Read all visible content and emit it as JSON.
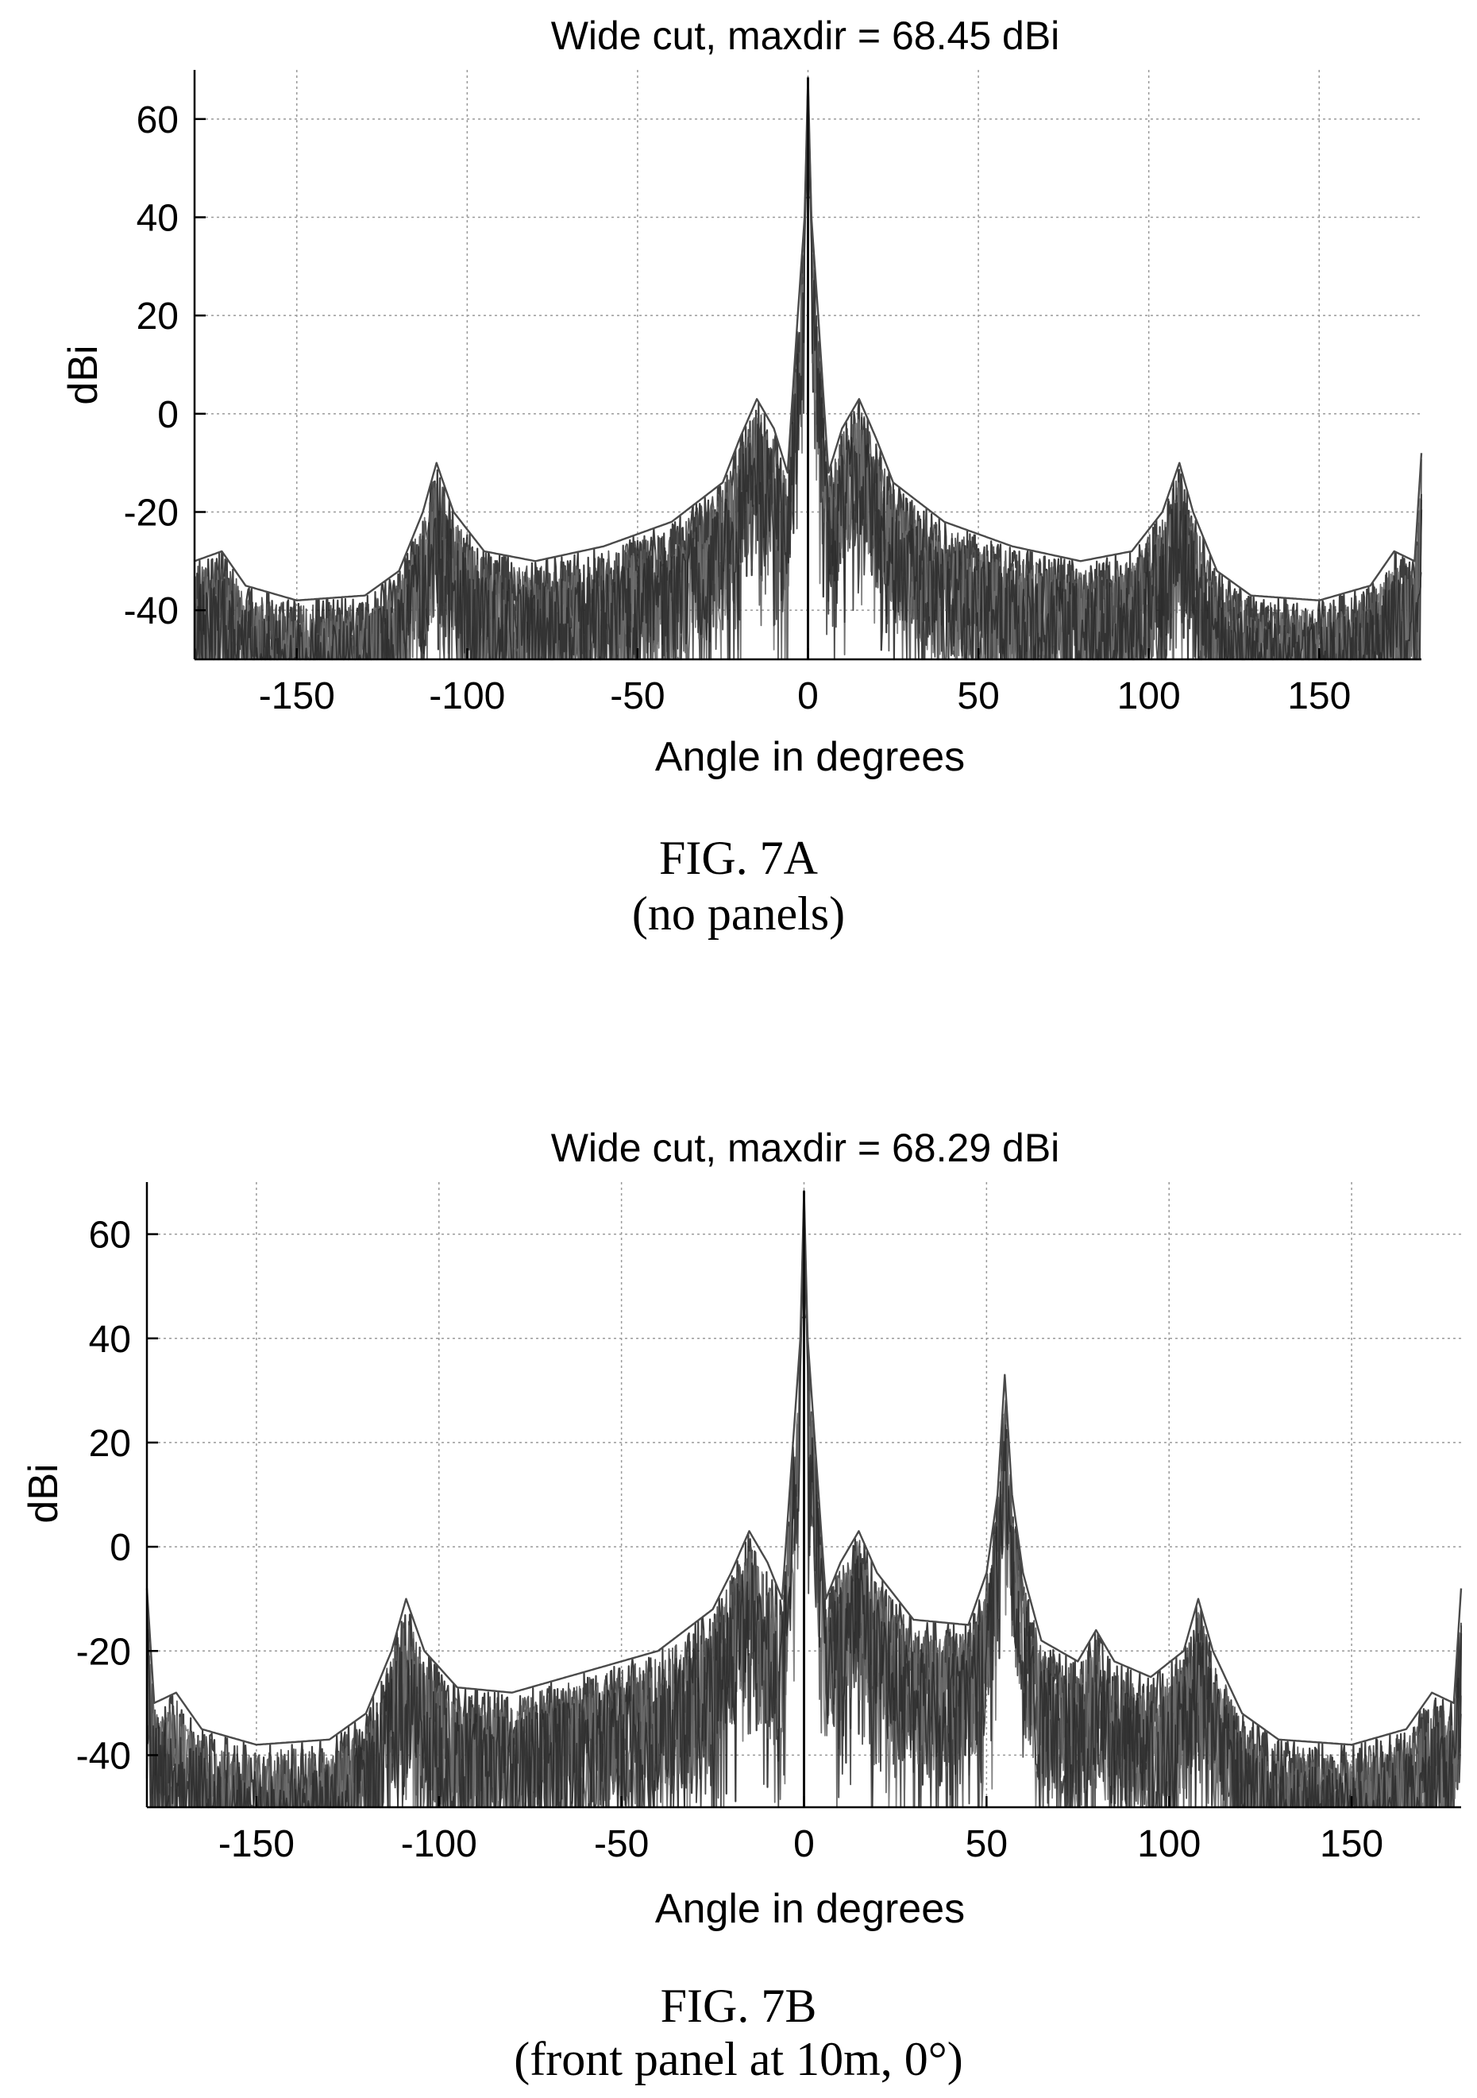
{
  "chart_data": [
    {
      "type": "line",
      "title": "Wide cut, maxdir = 68.45 dBi",
      "xlabel": "Angle in degrees",
      "ylabel": "dBi",
      "xlim": [
        -180,
        180
      ],
      "ylim": [
        -50,
        70
      ],
      "xticks": [
        -150,
        -100,
        -50,
        0,
        50,
        100,
        150
      ],
      "yticks": [
        -40,
        -20,
        0,
        20,
        40,
        60
      ],
      "grid": true,
      "caption": "FIG. 7A",
      "subcaption": "(no panels)",
      "peak_dbi": 68.45,
      "envelope": [
        [
          -180,
          -30
        ],
        [
          -172,
          -28
        ],
        [
          -165,
          -35
        ],
        [
          -150,
          -38
        ],
        [
          -130,
          -37
        ],
        [
          -120,
          -32
        ],
        [
          -113,
          -20
        ],
        [
          -109,
          -10
        ],
        [
          -104,
          -20
        ],
        [
          -95,
          -28
        ],
        [
          -80,
          -30
        ],
        [
          -60,
          -27
        ],
        [
          -40,
          -22
        ],
        [
          -25,
          -14
        ],
        [
          -20,
          -5
        ],
        [
          -15,
          3
        ],
        [
          -10,
          -3
        ],
        [
          -6,
          -12
        ],
        [
          -3,
          20
        ],
        [
          -1,
          40
        ],
        [
          0,
          68.45
        ],
        [
          1,
          40
        ],
        [
          3,
          20
        ],
        [
          6,
          -12
        ],
        [
          10,
          -3
        ],
        [
          15,
          3
        ],
        [
          20,
          -5
        ],
        [
          25,
          -14
        ],
        [
          40,
          -22
        ],
        [
          60,
          -27
        ],
        [
          80,
          -30
        ],
        [
          95,
          -28
        ],
        [
          104,
          -20
        ],
        [
          109,
          -10
        ],
        [
          113,
          -20
        ],
        [
          120,
          -32
        ],
        [
          130,
          -37
        ],
        [
          150,
          -38
        ],
        [
          165,
          -35
        ],
        [
          172,
          -28
        ],
        [
          178,
          -30
        ],
        [
          180,
          -8
        ]
      ]
    },
    {
      "type": "line",
      "title": "Wide cut, maxdir = 68.29 dBi",
      "xlabel": "Angle in degrees",
      "ylabel": "dBi",
      "xlim": [
        -180,
        180
      ],
      "ylim": [
        -50,
        70
      ],
      "xticks": [
        -150,
        -100,
        -50,
        0,
        50,
        100,
        150
      ],
      "yticks": [
        -40,
        -20,
        0,
        20,
        40,
        60
      ],
      "grid": true,
      "caption": "FIG. 7B",
      "subcaption": "(front panel at 10m, 0°)",
      "peak_dbi": 68.29,
      "envelope": [
        [
          -180,
          -8
        ],
        [
          -178,
          -30
        ],
        [
          -172,
          -28
        ],
        [
          -165,
          -35
        ],
        [
          -150,
          -38
        ],
        [
          -130,
          -37
        ],
        [
          -120,
          -32
        ],
        [
          -113,
          -20
        ],
        [
          -109,
          -10
        ],
        [
          -104,
          -20
        ],
        [
          -95,
          -27
        ],
        [
          -80,
          -28
        ],
        [
          -60,
          -24
        ],
        [
          -40,
          -20
        ],
        [
          -25,
          -12
        ],
        [
          -20,
          -5
        ],
        [
          -15,
          3
        ],
        [
          -10,
          -3
        ],
        [
          -6,
          -10
        ],
        [
          -3,
          20
        ],
        [
          -1,
          40
        ],
        [
          0,
          68.29
        ],
        [
          1,
          40
        ],
        [
          3,
          20
        ],
        [
          6,
          -10
        ],
        [
          10,
          -3
        ],
        [
          15,
          3
        ],
        [
          20,
          -5
        ],
        [
          30,
          -14
        ],
        [
          45,
          -15
        ],
        [
          50,
          -5
        ],
        [
          53,
          10
        ],
        [
          55,
          33
        ],
        [
          57,
          10
        ],
        [
          60,
          -5
        ],
        [
          65,
          -18
        ],
        [
          75,
          -22
        ],
        [
          80,
          -16
        ],
        [
          85,
          -22
        ],
        [
          95,
          -25
        ],
        [
          104,
          -20
        ],
        [
          108,
          -10
        ],
        [
          112,
          -20
        ],
        [
          120,
          -32
        ],
        [
          130,
          -37
        ],
        [
          150,
          -38
        ],
        [
          165,
          -35
        ],
        [
          172,
          -28
        ],
        [
          178,
          -30
        ],
        [
          180,
          -8
        ]
      ]
    }
  ]
}
